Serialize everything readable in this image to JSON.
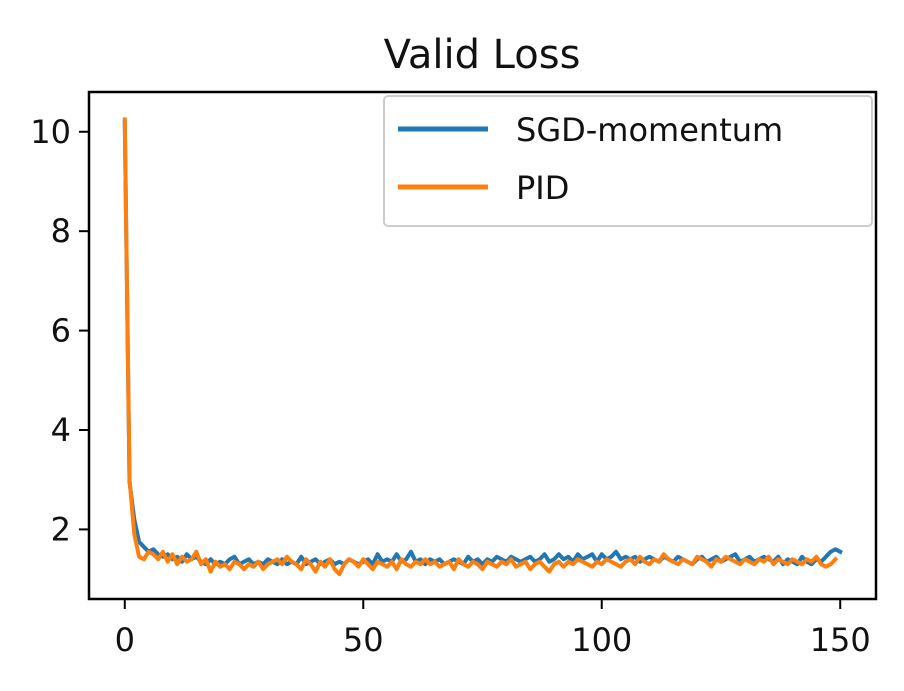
{
  "chart_data": {
    "type": "line",
    "title": "Valid Loss",
    "xlabel": "",
    "ylabel": "",
    "xlim": [
      -7.5,
      157.5
    ],
    "ylim": [
      0.6,
      10.8
    ],
    "grid": false,
    "legend_position": "top-right",
    "x_ticks": [
      0,
      50,
      100,
      150
    ],
    "y_ticks": [
      2,
      4,
      6,
      8,
      10
    ],
    "x_tick_labels": [
      "0",
      "50",
      "100",
      "150"
    ],
    "y_tick_labels": [
      "2",
      "4",
      "6",
      "8",
      "10"
    ],
    "series": [
      {
        "name": "SGD-momentum",
        "color": "#1f77b4",
        "x_start": 0,
        "x_step": 1,
        "values": [
          10.2,
          2.95,
          2.2,
          1.75,
          1.65,
          1.55,
          1.6,
          1.5,
          1.45,
          1.5,
          1.4,
          1.45,
          1.35,
          1.5,
          1.4,
          1.45,
          1.35,
          1.3,
          1.4,
          1.3,
          1.35,
          1.3,
          1.4,
          1.45,
          1.3,
          1.35,
          1.4,
          1.3,
          1.35,
          1.3,
          1.4,
          1.35,
          1.3,
          1.4,
          1.3,
          1.35,
          1.3,
          1.45,
          1.3,
          1.35,
          1.4,
          1.3,
          1.35,
          1.4,
          1.3,
          1.35,
          1.3,
          1.4,
          1.35,
          1.3,
          1.35,
          1.4,
          1.3,
          1.5,
          1.35,
          1.4,
          1.35,
          1.5,
          1.35,
          1.4,
          1.55,
          1.35,
          1.4,
          1.3,
          1.4,
          1.35,
          1.4,
          1.3,
          1.35,
          1.4,
          1.35,
          1.3,
          1.45,
          1.35,
          1.4,
          1.3,
          1.4,
          1.35,
          1.45,
          1.4,
          1.35,
          1.45,
          1.4,
          1.35,
          1.4,
          1.45,
          1.35,
          1.4,
          1.5,
          1.35,
          1.4,
          1.5,
          1.4,
          1.45,
          1.35,
          1.5,
          1.4,
          1.45,
          1.5,
          1.35,
          1.5,
          1.4,
          1.45,
          1.55,
          1.4,
          1.45,
          1.4,
          1.45,
          1.35,
          1.4,
          1.45,
          1.4,
          1.35,
          1.45,
          1.4,
          1.35,
          1.45,
          1.4,
          1.35,
          1.3,
          1.4,
          1.45,
          1.35,
          1.4,
          1.45,
          1.35,
          1.4,
          1.45,
          1.5,
          1.35,
          1.4,
          1.45,
          1.35,
          1.4,
          1.45,
          1.4,
          1.35,
          1.45,
          1.3,
          1.4,
          1.35,
          1.3,
          1.45,
          1.35,
          1.3,
          1.4,
          1.35,
          1.45,
          1.55,
          1.6,
          1.55
        ]
      },
      {
        "name": "PID",
        "color": "#ff7f0e",
        "x_start": 0,
        "x_step": 1,
        "values": [
          10.25,
          3.0,
          1.9,
          1.45,
          1.4,
          1.55,
          1.5,
          1.4,
          1.55,
          1.35,
          1.5,
          1.3,
          1.45,
          1.35,
          1.4,
          1.55,
          1.3,
          1.4,
          1.15,
          1.35,
          1.25,
          1.3,
          1.2,
          1.35,
          1.3,
          1.2,
          1.3,
          1.25,
          1.35,
          1.2,
          1.3,
          1.35,
          1.4,
          1.3,
          1.45,
          1.35,
          1.3,
          1.2,
          1.4,
          1.3,
          1.15,
          1.35,
          1.25,
          1.4,
          1.2,
          1.1,
          1.3,
          1.4,
          1.35,
          1.25,
          1.4,
          1.3,
          1.2,
          1.35,
          1.3,
          1.25,
          1.35,
          1.2,
          1.4,
          1.3,
          1.25,
          1.35,
          1.3,
          1.4,
          1.3,
          1.35,
          1.25,
          1.3,
          1.35,
          1.2,
          1.4,
          1.3,
          1.25,
          1.35,
          1.3,
          1.2,
          1.35,
          1.3,
          1.25,
          1.35,
          1.3,
          1.4,
          1.25,
          1.3,
          1.35,
          1.2,
          1.3,
          1.35,
          1.25,
          1.15,
          1.3,
          1.35,
          1.25,
          1.35,
          1.3,
          1.4,
          1.35,
          1.3,
          1.25,
          1.35,
          1.3,
          1.4,
          1.35,
          1.3,
          1.25,
          1.35,
          1.4,
          1.3,
          1.45,
          1.35,
          1.3,
          1.4,
          1.35,
          1.5,
          1.4,
          1.35,
          1.3,
          1.4,
          1.35,
          1.3,
          1.45,
          1.4,
          1.35,
          1.25,
          1.4,
          1.35,
          1.45,
          1.4,
          1.35,
          1.3,
          1.4,
          1.35,
          1.3,
          1.4,
          1.35,
          1.45,
          1.3,
          1.4,
          1.35,
          1.3,
          1.4,
          1.35,
          1.3,
          1.4,
          1.35,
          1.45,
          1.3,
          1.25,
          1.3,
          1.4
        ]
      }
    ]
  }
}
